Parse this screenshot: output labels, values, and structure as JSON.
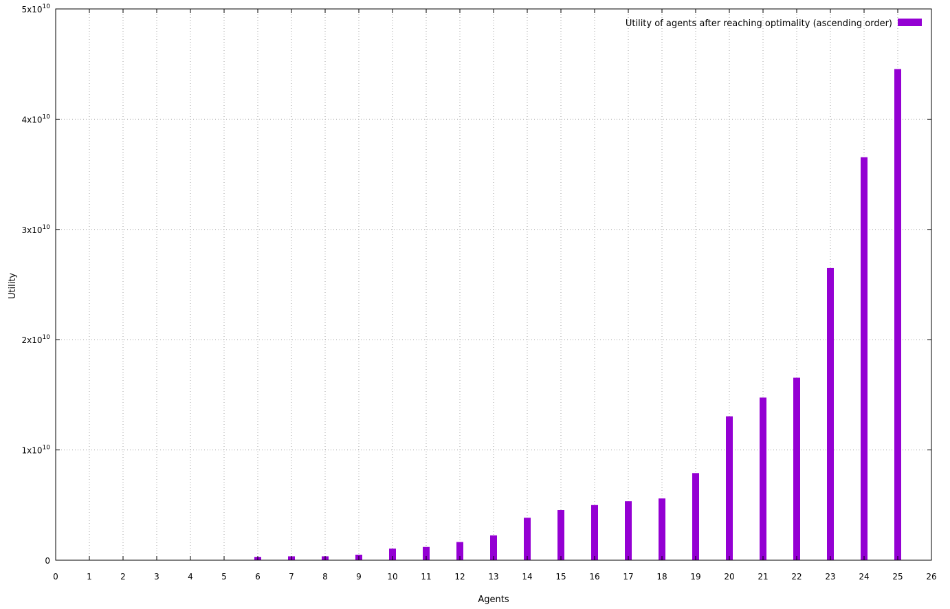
{
  "chart_data": {
    "type": "bar",
    "title": "",
    "xlabel": "Agents",
    "ylabel": "Utility",
    "legend": {
      "label": "Utility of agents after reaching optimality (ascending order)",
      "placement": "top-right"
    },
    "xlim": [
      0,
      26
    ],
    "ylim": [
      0,
      50000000000
    ],
    "grid": true,
    "x_ticks": [
      "0",
      "1",
      "2",
      "3",
      "4",
      "5",
      "6",
      "7",
      "8",
      "9",
      "10",
      "11",
      "12",
      "13",
      "14",
      "15",
      "16",
      "17",
      "18",
      "19",
      "20",
      "21",
      "22",
      "23",
      "24",
      "25",
      "26"
    ],
    "y_ticks": [
      {
        "value": 0,
        "mantissa": "0",
        "exp": ""
      },
      {
        "value": 10000000000,
        "mantissa": "1x10",
        "exp": "10"
      },
      {
        "value": 20000000000,
        "mantissa": "2x10",
        "exp": "10"
      },
      {
        "value": 30000000000,
        "mantissa": "3x10",
        "exp": "10"
      },
      {
        "value": 40000000000,
        "mantissa": "4x10",
        "exp": "10"
      },
      {
        "value": 50000000000,
        "mantissa": "5x10",
        "exp": "10"
      }
    ],
    "x": [
      1,
      2,
      3,
      4,
      5,
      6,
      7,
      8,
      9,
      10,
      11,
      12,
      13,
      14,
      15,
      16,
      17,
      18,
      19,
      20,
      21,
      22,
      23,
      24,
      25
    ],
    "values": [
      0,
      0,
      0,
      0,
      0,
      300000000,
      350000000,
      350000000,
      500000000,
      1050000000,
      1200000000,
      1650000000,
      2250000000,
      3850000000,
      4550000000,
      5000000000,
      5350000000,
      5600000000,
      7900000000,
      13050000000,
      14750000000,
      16550000000,
      26500000000,
      36550000000,
      44550000000
    ],
    "color": "#9400d3"
  }
}
